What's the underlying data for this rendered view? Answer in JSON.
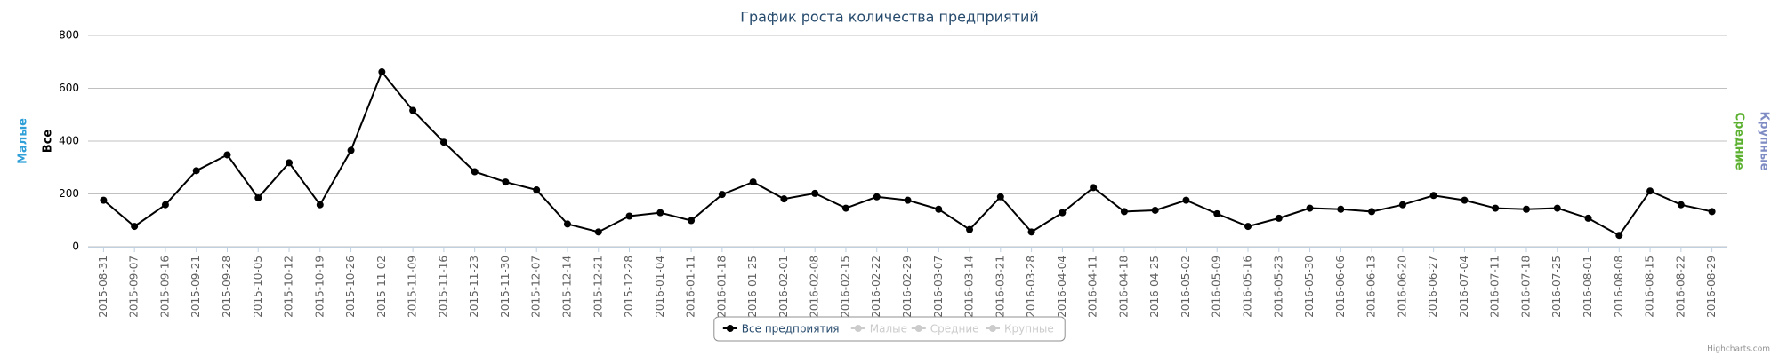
{
  "chart_data": {
    "type": "line",
    "title": "График роста количества предприятий",
    "categories": [
      "2015-08-31",
      "2015-09-07",
      "2015-09-16",
      "2015-09-21",
      "2015-09-28",
      "2015-10-05",
      "2015-10-12",
      "2015-10-19",
      "2015-10-26",
      "2015-11-02",
      "2015-11-09",
      "2015-11-16",
      "2015-11-23",
      "2015-11-30",
      "2015-12-07",
      "2015-12-14",
      "2015-12-21",
      "2015-12-28",
      "2016-01-04",
      "2016-01-11",
      "2016-01-18",
      "2016-01-25",
      "2016-02-01",
      "2016-02-08",
      "2016-02-15",
      "2016-02-22",
      "2016-02-29",
      "2016-03-07",
      "2016-03-14",
      "2016-03-21",
      "2016-03-28",
      "2016-04-04",
      "2016-04-11",
      "2016-04-18",
      "2016-04-25",
      "2016-05-02",
      "2016-05-09",
      "2016-05-16",
      "2016-05-23",
      "2016-05-30",
      "2016-06-06",
      "2016-06-13",
      "2016-06-20",
      "2016-06-27",
      "2016-07-04",
      "2016-07-11",
      "2016-07-18",
      "2016-07-25",
      "2016-08-01",
      "2016-08-08",
      "2016-08-15",
      "2016-08-22",
      "2016-08-29"
    ],
    "series": [
      {
        "name": "Все предприятия",
        "color": "#000000",
        "visible": true,
        "values": [
          176,
          77,
          159,
          288,
          348,
          185,
          318,
          159,
          365,
          662,
          516,
          396,
          284,
          245,
          215,
          86,
          56,
          116,
          129,
          99,
          198,
          245,
          181,
          202,
          146,
          189,
          176,
          142,
          65,
          189,
          56,
          129,
          224,
          133,
          138,
          176,
          125,
          77,
          108,
          146,
          142,
          133,
          159,
          194,
          176,
          146,
          142,
          146,
          108,
          43,
          211,
          159,
          133
        ]
      },
      {
        "name": "Малые",
        "color": "#2f9fd8",
        "visible": false
      },
      {
        "name": "Средние",
        "color": "#5bb12f",
        "visible": false
      },
      {
        "name": "Крупные",
        "color": "#7f8cc4",
        "visible": false
      }
    ],
    "axis_titles": [
      {
        "title": "Малые",
        "color": "#2f9fd8",
        "side": "left"
      },
      {
        "title": "Все",
        "color": "#000000",
        "side": "left"
      },
      {
        "title": "Средние",
        "color": "#5bb12f",
        "side": "right"
      },
      {
        "title": "Крупные",
        "color": "#7f8cc4",
        "side": "right"
      }
    ],
    "ylim": [
      0,
      800
    ],
    "yticks": [
      0,
      200,
      400,
      600,
      800
    ],
    "grid": true,
    "credits": "Highcharts.com"
  }
}
